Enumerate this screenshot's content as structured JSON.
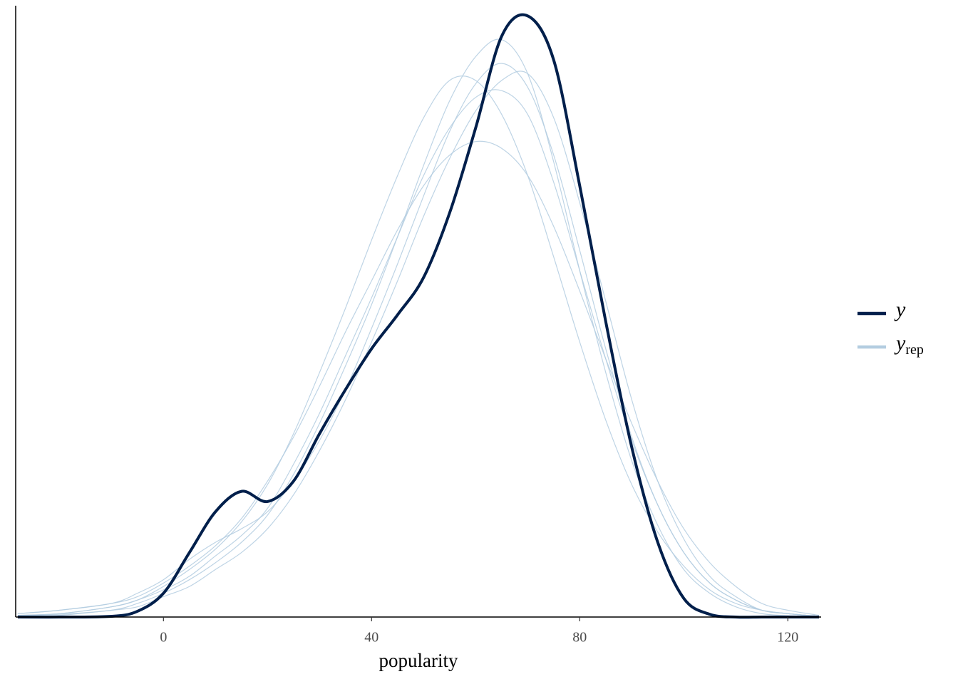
{
  "chart_data": {
    "type": "density-overlay",
    "xlabel": "popularity",
    "xlim": [
      -28.4,
      126.4
    ],
    "xticks": [
      0,
      40,
      80,
      120
    ],
    "ylim": [
      0,
      0.018
    ],
    "x": [
      -28,
      -20,
      -10,
      -5,
      0,
      5,
      10,
      15,
      20,
      25,
      30,
      35,
      40,
      45,
      50,
      55,
      60,
      65,
      70,
      75,
      80,
      85,
      90,
      95,
      100,
      105,
      110,
      115,
      120,
      126
    ],
    "series": [
      {
        "name": "y",
        "color": "#011f4b",
        "values": [
          0,
          0,
          2e-05,
          0.00017,
          0.0007,
          0.0019,
          0.0031,
          0.0037,
          0.0034,
          0.004,
          0.0054,
          0.0067,
          0.0079,
          0.0089,
          0.01,
          0.0119,
          0.0144,
          0.0171,
          0.0177,
          0.0164,
          0.0127,
          0.0087,
          0.005,
          0.0022,
          0.00055,
          8e-05,
          0,
          0,
          0,
          0
        ]
      },
      {
        "name": "y",
        "subscript": "rep",
        "color": "#b3cde0",
        "draws": [
          {
            "values": [
              3e-05,
              8e-05,
              0.0002,
              0.0004,
              0.0007,
              0.0011,
              0.0016,
              0.0022,
              0.003,
              0.0042,
              0.0057,
              0.0074,
              0.0092,
              0.0112,
              0.0133,
              0.0152,
              0.0165,
              0.017,
              0.016,
              0.0134,
              0.0102,
              0.0072,
              0.0046,
              0.0027,
              0.0014,
              0.0007,
              0.0003,
              0.0001,
              4e-05,
              1e-05
            ]
          },
          {
            "values": [
              0.0001,
              0.0002,
              0.0004,
              0.0006,
              0.001,
              0.0015,
              0.0021,
              0.0029,
              0.004,
              0.0053,
              0.0068,
              0.0084,
              0.0099,
              0.0114,
              0.0127,
              0.0136,
              0.014,
              0.0138,
              0.013,
              0.0115,
              0.0096,
              0.0076,
              0.0057,
              0.004,
              0.0026,
              0.0016,
              0.0009,
              0.0004,
              0.0002,
              5e-05
            ]
          },
          {
            "values": [
              5e-05,
              0.0001,
              0.0003,
              0.0005,
              0.0008,
              0.0012,
              0.0018,
              0.0024,
              0.0032,
              0.0045,
              0.006,
              0.0077,
              0.0094,
              0.0112,
              0.013,
              0.0144,
              0.0153,
              0.0155,
              0.0148,
              0.0128,
              0.0102,
              0.0076,
              0.0052,
              0.0033,
              0.0019,
              0.001,
              0.0005,
              0.0002,
              0.0001,
              2e-05
            ]
          },
          {
            "values": [
              2e-05,
              5e-05,
              0.0002,
              0.0003,
              0.0006,
              0.0009,
              0.0014,
              0.0019,
              0.0026,
              0.0036,
              0.0049,
              0.0064,
              0.0081,
              0.0099,
              0.0118,
              0.0135,
              0.0149,
              0.0158,
              0.016,
              0.0147,
              0.0122,
              0.0093,
              0.0064,
              0.004,
              0.0023,
              0.0012,
              0.0006,
              0.0002,
              0.0001,
              2e-05
            ]
          },
          {
            "values": [
              5e-05,
              0.0001,
              0.0003,
              0.0005,
              0.0009,
              0.0014,
              0.002,
              0.0028,
              0.0039,
              0.0054,
              0.0072,
              0.0091,
              0.0111,
              0.013,
              0.0147,
              0.0158,
              0.0158,
              0.0148,
              0.013,
              0.0106,
              0.0081,
              0.0058,
              0.0039,
              0.0025,
              0.0015,
              0.0008,
              0.0004,
              0.0002,
              0.0001,
              2e-05
            ]
          },
          {
            "values": [
              0.0001,
              0.0002,
              0.0004,
              0.0007,
              0.0011,
              0.0017,
              0.0022,
              0.0026,
              0.0031,
              0.004,
              0.0052,
              0.0067,
              0.0085,
              0.0104,
              0.0124,
              0.0143,
              0.0157,
              0.0163,
              0.0156,
              0.0136,
              0.0108,
              0.0079,
              0.0053,
              0.0033,
              0.0019,
              0.001,
              0.0005,
              0.0002,
              0.0001,
              2e-05
            ]
          }
        ]
      }
    ]
  }
}
